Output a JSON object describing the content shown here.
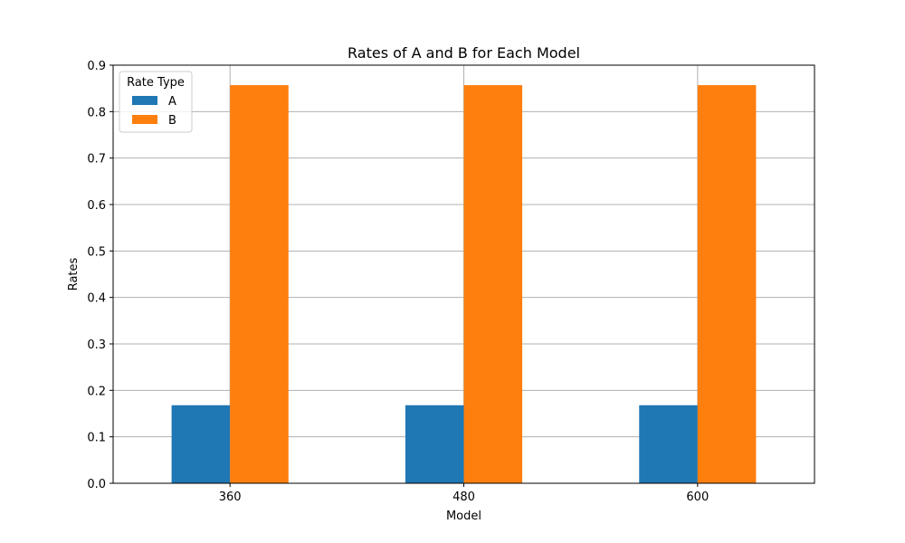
{
  "chart_data": {
    "type": "bar",
    "title": "Rates of A and B for Each Model",
    "xlabel": "Model",
    "ylabel": "Rates",
    "categories": [
      "360",
      "480",
      "600"
    ],
    "series": [
      {
        "name": "A",
        "values": [
          0.168,
          0.168,
          0.168
        ],
        "color": "#1f77b4"
      },
      {
        "name": "B",
        "values": [
          0.857,
          0.857,
          0.857
        ],
        "color": "#ff7f0e"
      }
    ],
    "ylim": [
      0,
      0.9
    ],
    "yticks": [
      "0.0",
      "0.1",
      "0.2",
      "0.3",
      "0.4",
      "0.5",
      "0.6",
      "0.7",
      "0.8",
      "0.9"
    ],
    "grid": true,
    "legend": {
      "title": "Rate Type",
      "position": "top-left"
    }
  }
}
